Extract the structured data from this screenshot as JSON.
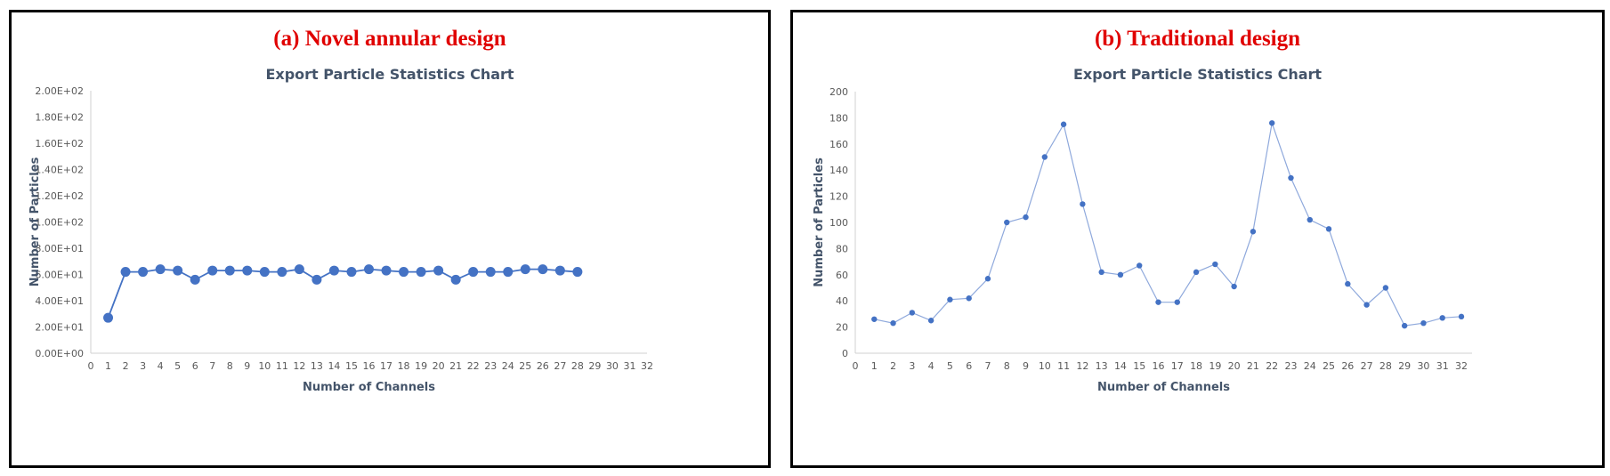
{
  "chart_data": [
    {
      "type": "line",
      "caption": "(a) Novel annular design",
      "title": "Export Particle Statistics Chart",
      "xlabel": "Number of Channels",
      "ylabel": "Number of Particles",
      "xlim": [
        0,
        32
      ],
      "ylim": [
        0,
        200
      ],
      "y_ticks": [
        0,
        20,
        40,
        60,
        80,
        100,
        120,
        140,
        160,
        180,
        200
      ],
      "y_tick_labels": [
        "0.00E+00",
        "2.00E+01",
        "4.00E+01",
        "6.00E+01",
        "8.00E+01",
        "1.00E+02",
        "1.20E+02",
        "1.40E+02",
        "1.60E+02",
        "1.80E+02",
        "2.00E+02"
      ],
      "x_ticks": [
        0,
        1,
        2,
        3,
        4,
        5,
        6,
        7,
        8,
        9,
        10,
        11,
        12,
        13,
        14,
        15,
        16,
        17,
        18,
        19,
        20,
        21,
        22,
        23,
        24,
        25,
        26,
        27,
        28,
        29,
        30,
        31,
        32
      ],
      "grid": false,
      "series": [
        {
          "x": [
            1,
            2,
            3,
            4,
            5,
            6,
            7,
            8,
            9,
            10,
            11,
            12,
            13,
            14,
            15,
            16,
            17,
            18,
            19,
            20,
            21,
            22,
            23,
            24,
            25,
            26,
            27,
            28
          ],
          "values": [
            27,
            62,
            62,
            64,
            63,
            56,
            63,
            63,
            63,
            62,
            62,
            64,
            56,
            63,
            62,
            64,
            63,
            62,
            62,
            63,
            56,
            62,
            62,
            62,
            64,
            64,
            63,
            62
          ]
        }
      ],
      "color": "#4472c4"
    },
    {
      "type": "line",
      "caption": "(b) Traditional design",
      "title": "Export Particle Statistics Chart",
      "xlabel": "Number of Channels",
      "ylabel": "Number of Particles",
      "xlim": [
        0,
        32
      ],
      "ylim": [
        0,
        200
      ],
      "y_ticks": [
        0,
        20,
        40,
        60,
        80,
        100,
        120,
        140,
        160,
        180,
        200
      ],
      "y_tick_labels": [
        "0",
        "20",
        "40",
        "60",
        "80",
        "100",
        "120",
        "140",
        "160",
        "180",
        "200"
      ],
      "x_ticks": [
        0,
        1,
        2,
        3,
        4,
        5,
        6,
        7,
        8,
        9,
        10,
        11,
        12,
        13,
        14,
        15,
        16,
        17,
        18,
        19,
        20,
        21,
        22,
        23,
        24,
        25,
        26,
        27,
        28,
        29,
        30,
        31,
        32
      ],
      "grid": false,
      "series": [
        {
          "x": [
            1,
            2,
            3,
            4,
            5,
            6,
            7,
            8,
            9,
            10,
            11,
            12,
            13,
            14,
            15,
            16,
            17,
            18,
            19,
            20,
            21,
            22,
            23,
            24,
            25,
            26,
            27,
            28,
            29,
            30,
            31,
            32
          ],
          "values": [
            26,
            23,
            31,
            25,
            41,
            42,
            57,
            100,
            104,
            150,
            175,
            114,
            62,
            60,
            67,
            39,
            39,
            62,
            68,
            51,
            93,
            176,
            134,
            102,
            95,
            53,
            37,
            50,
            21,
            23,
            27,
            28
          ]
        }
      ],
      "color": "#4472c4"
    }
  ]
}
